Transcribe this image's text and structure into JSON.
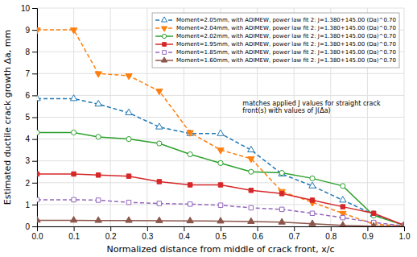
{
  "chart_data": {
    "type": "line",
    "xlabel": "Normalized distance from middle of crack front, x/c",
    "ylabel": "Estimated ductile crack growth Δa, mm",
    "x": [
      0.0,
      0.1,
      0.167,
      0.25,
      0.333,
      0.417,
      0.5,
      0.583,
      0.667,
      0.75,
      0.833,
      0.917,
      1.0
    ],
    "xlim": [
      0.0,
      1.0
    ],
    "xticks": [
      {
        "value": 0.0,
        "label": "0.0"
      },
      0.1,
      0.2,
      0.3,
      0.4,
      0.5,
      0.6,
      0.7,
      0.8,
      0.9,
      {
        "value": 1.0,
        "label": "1.0"
      }
    ],
    "ylim": [
      0,
      10
    ],
    "yticks": [
      0,
      1,
      2,
      3,
      4,
      5,
      6,
      7,
      8,
      9,
      10
    ],
    "grid": true,
    "legend": "top-right",
    "annotations": [
      {
        "text": "matches applied J values for straight crack\nfront(s) with values of J(Δa)",
        "x": 0.56,
        "y": 5.8
      }
    ],
    "series": [
      {
        "name": "Moment=2.05mm, with ADIMEW, power law fit 2: J=1.380+145.00 (Da)^0.70",
        "values": [
          5.85,
          5.85,
          5.6,
          5.2,
          4.55,
          4.25,
          4.25,
          3.5,
          2.4,
          1.85,
          1.2,
          0.55,
          0.05
        ],
        "line_style": "dashed",
        "marker": "triangle-up-open"
      },
      {
        "name": "Moment=2.04mm, with ADIMEW, power law fit 2: J=1.380+145.00 (Da)^0.70",
        "values": [
          9.0,
          9.0,
          7.0,
          6.9,
          6.2,
          4.3,
          3.5,
          3.1,
          1.6,
          1.1,
          0.6,
          0.1,
          0.02
        ],
        "line_style": "dashed",
        "marker": "triangle-down-filled"
      },
      {
        "name": "Moment=2.02mm, with ADIMEW, power law fit 2: J=1.380+145.00 (Da)^0.70",
        "values": [
          4.3,
          4.3,
          4.1,
          4.0,
          3.8,
          3.3,
          2.9,
          2.5,
          2.45,
          2.2,
          1.85,
          0.5,
          0.05
        ],
        "line_style": "solid",
        "marker": "circle-open"
      },
      {
        "name": "Moment=1.95mm, with ADIMEW, power law fit 2: J=1.380+145.00 (Da)^0.70",
        "values": [
          2.4,
          2.4,
          2.35,
          2.3,
          2.05,
          1.9,
          1.9,
          1.65,
          1.5,
          1.2,
          0.9,
          0.6,
          0.05
        ],
        "line_style": "solid",
        "marker": "square-filled"
      },
      {
        "name": "Moment=1.85mm, with ADIMEW, power law fit 2: J=1.380+145.00 (Da)^0.70",
        "values": [
          1.22,
          1.22,
          1.2,
          1.1,
          1.05,
          1.02,
          0.97,
          0.85,
          0.78,
          0.6,
          0.4,
          0.18,
          0.02
        ],
        "line_style": "dashed",
        "marker": "square-open"
      },
      {
        "name": "Moment=1.60mm, with ADIMEW, power law fit 2: J=1.380+145.00 (Da)^0.70",
        "values": [
          0.28,
          0.28,
          0.27,
          0.27,
          0.26,
          0.25,
          0.24,
          0.22,
          0.19,
          0.12,
          0.05,
          0.01,
          0.0
        ],
        "line_style": "solid",
        "marker": "triangle-up-filled"
      }
    ]
  }
}
